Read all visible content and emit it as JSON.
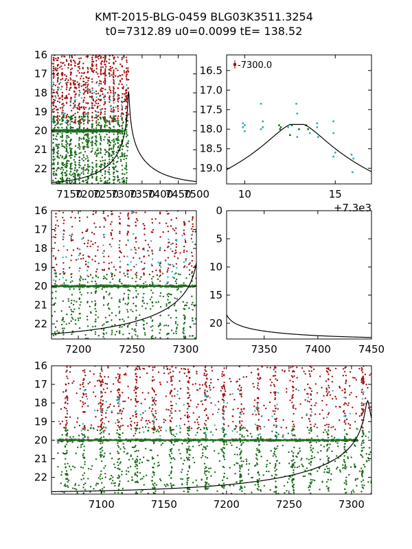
{
  "figure": {
    "title_line1": "KMT-2015-BLG-0459 BLG03K3511.3254",
    "title_line2": "t0=7312.89 u0=0.0099 tE= 138.52"
  },
  "model": {
    "t0": 7312.89,
    "u0": 0.0099,
    "tE": 138.52,
    "baseline_mag": 22.85,
    "peak_mag": 17.88
  },
  "colors": {
    "red": "#a01010",
    "green": "#1a6b1a",
    "cyan": "#20b2b2",
    "model": "#000000"
  },
  "chart_data": [
    {
      "id": "p1",
      "type": "scatter",
      "xlim": [
        7100,
        7500
      ],
      "ylim": [
        22.8,
        16.0
      ],
      "x_ticks": [
        7150,
        7200,
        7250,
        7300,
        7350,
        7400,
        7450,
        7500
      ],
      "x_tick_labels": [
        "7150",
        "7200",
        "7250",
        "7300",
        "7350",
        "7400",
        "7450",
        "7500"
      ],
      "y_ticks": [
        16,
        17,
        18,
        19,
        20,
        21,
        22
      ],
      "y_tick_labels": [
        "16",
        "17",
        "18",
        "19",
        "20",
        "21",
        "22"
      ],
      "data_x_range": [
        7100,
        7313
      ],
      "series": [
        {
          "name": "red",
          "mag_range": [
            16.0,
            19.6
          ],
          "count": 700,
          "marker": "dot"
        },
        {
          "name": "green",
          "mag_range": [
            19.2,
            22.8
          ],
          "count": 900,
          "marker": "dot"
        },
        {
          "name": "cyan",
          "mag_range": [
            17.4,
            19.6
          ],
          "count": 60,
          "marker": "dot"
        },
        {
          "name": "baseline",
          "mag": 20.0,
          "x_range": [
            7100,
            7300
          ],
          "count": 200,
          "marker": "x"
        }
      ]
    },
    {
      "id": "p2",
      "type": "scatter",
      "xlim": [
        7309.0,
        7317.0
      ],
      "ylim": [
        19.4,
        16.1
      ],
      "x_ticks": [
        7310,
        7315
      ],
      "x_tick_labels": [
        "10",
        "15"
      ],
      "offset_label": "+7.3e3",
      "y_ticks": [
        16.5,
        17.0,
        17.5,
        18.0,
        18.5,
        19.0
      ],
      "y_tick_labels": [
        "16.5",
        "17.0",
        "17.5",
        "18.0",
        "18.5",
        "19.0"
      ],
      "legend": "-7300.0",
      "legend_position": "top-left",
      "points": [
        {
          "x": 7309.9,
          "y": 17.85,
          "s": "cyan"
        },
        {
          "x": 7309.9,
          "y": 17.95,
          "s": "cyan"
        },
        {
          "x": 7310.0,
          "y": 18.05,
          "s": "cyan"
        },
        {
          "x": 7310.0,
          "y": 17.9,
          "s": "cyan"
        },
        {
          "x": 7310.9,
          "y": 17.35,
          "s": "cyan"
        },
        {
          "x": 7311.0,
          "y": 17.8,
          "s": "cyan"
        },
        {
          "x": 7311.0,
          "y": 17.95,
          "s": "cyan"
        },
        {
          "x": 7310.9,
          "y": 18.0,
          "s": "cyan"
        },
        {
          "x": 7311.9,
          "y": 17.9,
          "s": "green"
        },
        {
          "x": 7311.95,
          "y": 18.0,
          "s": "green"
        },
        {
          "x": 7312.0,
          "y": 17.95,
          "s": "green"
        },
        {
          "x": 7312.4,
          "y": 17.95,
          "s": "cyan"
        },
        {
          "x": 7312.5,
          "y": 18.15,
          "s": "green"
        },
        {
          "x": 7312.6,
          "y": 17.9,
          "s": "green"
        },
        {
          "x": 7312.85,
          "y": 17.35,
          "s": "cyan"
        },
        {
          "x": 7312.9,
          "y": 17.6,
          "s": "cyan"
        },
        {
          "x": 7312.9,
          "y": 18.2,
          "s": "cyan"
        },
        {
          "x": 7313.0,
          "y": 18.0,
          "s": "green"
        },
        {
          "x": 7313.4,
          "y": 17.9,
          "s": "green"
        },
        {
          "x": 7313.5,
          "y": 18.0,
          "s": "green"
        },
        {
          "x": 7313.6,
          "y": 18.1,
          "s": "cyan"
        },
        {
          "x": 7314.0,
          "y": 17.85,
          "s": "cyan"
        },
        {
          "x": 7314.0,
          "y": 17.95,
          "s": "cyan"
        },
        {
          "x": 7314.05,
          "y": 18.2,
          "s": "cyan"
        },
        {
          "x": 7314.9,
          "y": 17.8,
          "s": "cyan"
        },
        {
          "x": 7314.9,
          "y": 18.1,
          "s": "cyan"
        },
        {
          "x": 7315.0,
          "y": 18.6,
          "s": "cyan"
        },
        {
          "x": 7314.9,
          "y": 18.7,
          "s": "cyan"
        },
        {
          "x": 7315.9,
          "y": 18.65,
          "s": "cyan"
        },
        {
          "x": 7316.0,
          "y": 18.75,
          "s": "cyan"
        },
        {
          "x": 7315.95,
          "y": 19.1,
          "s": "cyan"
        }
      ]
    },
    {
      "id": "p3",
      "type": "scatter",
      "xlim": [
        7175,
        7310
      ],
      "ylim": [
        22.8,
        16.0
      ],
      "x_ticks": [
        7200,
        7250,
        7300
      ],
      "x_tick_labels": [
        "7200",
        "7250",
        "7300"
      ],
      "y_ticks": [
        16,
        17,
        18,
        19,
        20,
        21,
        22
      ],
      "y_tick_labels": [
        "16",
        "17",
        "18",
        "19",
        "20",
        "21",
        "22"
      ],
      "data_x_range": [
        7175,
        7310
      ],
      "series": [
        {
          "name": "red",
          "mag_range": [
            16.0,
            19.6
          ],
          "count": 330,
          "marker": "dot"
        },
        {
          "name": "green",
          "mag_range": [
            19.3,
            22.8
          ],
          "count": 450,
          "marker": "dot"
        },
        {
          "name": "cyan",
          "mag_range": [
            17.2,
            19.8
          ],
          "count": 70,
          "marker": "dot"
        },
        {
          "name": "baseline",
          "mag": 20.0,
          "x_range": [
            7175,
            7310
          ],
          "count": 150,
          "marker": "x"
        }
      ]
    },
    {
      "id": "p4",
      "type": "line",
      "xlim": [
        7315,
        7450
      ],
      "ylim": [
        22.8,
        0
      ],
      "x_ticks": [
        7350,
        7400,
        7450
      ],
      "x_tick_labels": [
        "7350",
        "7400",
        "7450"
      ],
      "y_ticks": [
        0,
        5,
        10,
        15,
        20
      ],
      "y_tick_labels": [
        "0",
        "5",
        "10",
        "15",
        "20"
      ]
    },
    {
      "id": "p5",
      "type": "scatter",
      "xlim": [
        7060,
        7316
      ],
      "ylim": [
        22.9,
        16.0
      ],
      "x_ticks": [
        7100,
        7150,
        7200,
        7250,
        7300
      ],
      "x_tick_labels": [
        "7100",
        "7150",
        "7200",
        "7250",
        "7300"
      ],
      "y_ticks": [
        16,
        17,
        18,
        19,
        20,
        21,
        22
      ],
      "y_tick_labels": [
        "16",
        "17",
        "18",
        "19",
        "20",
        "21",
        "22"
      ],
      "data_x_range": [
        7065,
        7316
      ],
      "series": [
        {
          "name": "red",
          "mag_range": [
            16.0,
            19.5
          ],
          "count": 900,
          "marker": "dot"
        },
        {
          "name": "green",
          "mag_range": [
            19.3,
            22.9
          ],
          "count": 1100,
          "marker": "dot"
        },
        {
          "name": "cyan",
          "mag_range": [
            17.3,
            19.9
          ],
          "count": 110,
          "marker": "dot"
        },
        {
          "name": "baseline",
          "mag": 20.0,
          "x_range": [
            7065,
            7305
          ],
          "count": 250,
          "marker": "x"
        }
      ]
    }
  ]
}
